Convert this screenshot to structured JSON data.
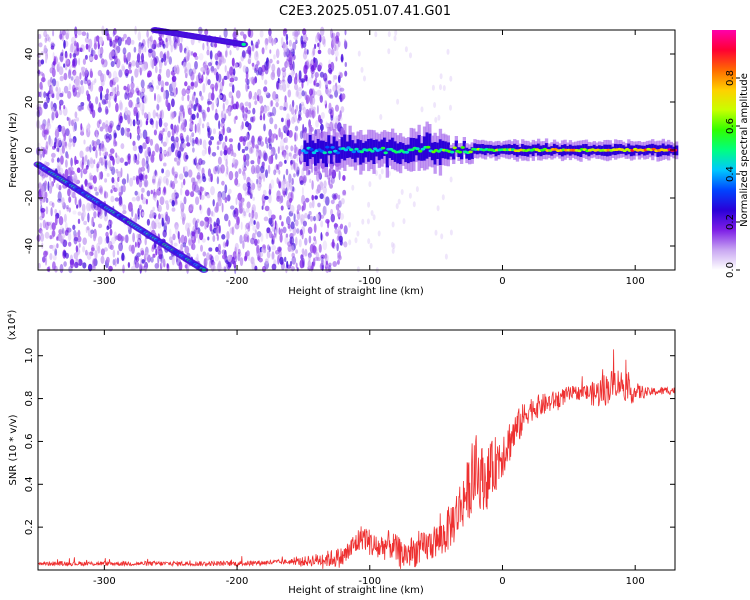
{
  "figure_title": "C2E3.2025.051.07.41.G01",
  "chart_data": [
    {
      "type": "heatmap",
      "id": "spectrogram",
      "xlabel": "Height of straight line (km)",
      "ylabel": "Frequency (Hz)",
      "xlim": [
        -350,
        130
      ],
      "ylim": [
        -50,
        50
      ],
      "x_ticks": [
        -300,
        -200,
        -100,
        0,
        100
      ],
      "y_ticks": [
        -40,
        -20,
        0,
        20,
        40
      ],
      "grid": false,
      "colorbar": {
        "label": "Normalized spectral amplitude",
        "range": [
          0,
          1
        ],
        "ticks": [
          0.0,
          0.2,
          0.4,
          0.6,
          0.8
        ],
        "colormap": [
          "#ffffff",
          "#c9a7f2",
          "#7d1ee6",
          "#2a00d8",
          "#0044ff",
          "#00c8ff",
          "#00ff80",
          "#30ff00",
          "#c8ff00",
          "#ffd000",
          "#ff6a00",
          "#ff0033",
          "#ff00aa"
        ]
      },
      "features": [
        {
          "name": "descending_line_lower",
          "x_start": -350,
          "f_start": -6,
          "x_end": -225,
          "f_end": -50,
          "amplitude": 0.45
        },
        {
          "name": "descending_line_upper",
          "x_start": -262,
          "f_start": 50,
          "x_end": -195,
          "f_end": 44,
          "amplitude": 0.45
        },
        {
          "name": "carrier_band",
          "x_start": -150,
          "x_end": 130,
          "f_center": 0,
          "amplitude_start": 0.4,
          "amplitude_end": 0.9
        }
      ]
    },
    {
      "type": "line",
      "id": "snr",
      "xlabel": "Height of straight line (km)",
      "ylabel": "SNR (10 * v/v)",
      "y_multiplier_label": "(x10⁴)",
      "xlim": [
        -350,
        130
      ],
      "ylim": [
        0,
        1.12
      ],
      "x_ticks": [
        -300,
        -200,
        -100,
        0,
        100
      ],
      "y_ticks": [
        0.2,
        0.4,
        0.6,
        0.8,
        1.0
      ],
      "grid": false,
      "series_color": "#ee3030",
      "envelope": {
        "x": [
          -350,
          -200,
          -150,
          -120,
          -105,
          -95,
          -85,
          -75,
          -60,
          -45,
          -35,
          -28,
          -20,
          -12,
          -5,
          0,
          10,
          20,
          35,
          50,
          60,
          70,
          80,
          85,
          90,
          95,
          110,
          130
        ],
        "y": [
          0.03,
          0.03,
          0.04,
          0.06,
          0.16,
          0.1,
          0.12,
          0.07,
          0.1,
          0.15,
          0.25,
          0.35,
          0.45,
          0.42,
          0.5,
          0.55,
          0.65,
          0.75,
          0.78,
          0.82,
          0.83,
          0.82,
          0.85,
          0.88,
          0.87,
          0.83,
          0.83,
          0.84
        ]
      },
      "noise_amplitude": {
        "x": [
          -350,
          -160,
          -110,
          -50,
          -20,
          0,
          20,
          60,
          75,
          95,
          110,
          130
        ],
        "y": [
          0.01,
          0.012,
          0.06,
          0.08,
          0.16,
          0.12,
          0.06,
          0.03,
          0.08,
          0.06,
          0.02,
          0.02
        ]
      }
    }
  ]
}
